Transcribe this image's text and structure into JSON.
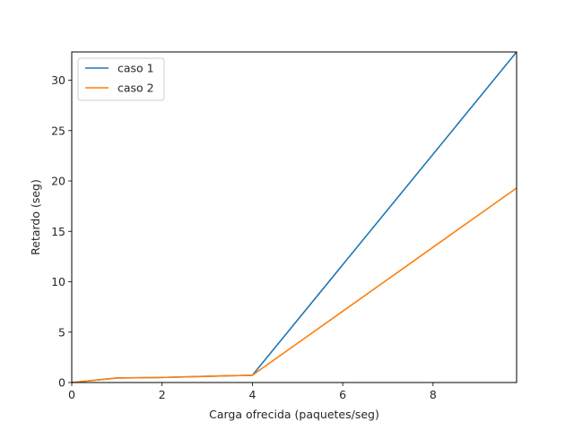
{
  "chart_data": {
    "type": "line",
    "title": "",
    "xlabel": "Carga ofrecida (paquetes/seg)",
    "ylabel": "Retardo (seg)",
    "xlim": [
      0,
      9.85
    ],
    "ylim": [
      0,
      32.8
    ],
    "xticks": [
      0,
      2,
      4,
      6,
      8
    ],
    "yticks": [
      0,
      5,
      10,
      15,
      20,
      25,
      30
    ],
    "grid": false,
    "legend": "top-left",
    "series": [
      {
        "name": "caso 1",
        "color": "#1f77b4",
        "x": [
          0,
          1,
          2,
          3,
          4,
          9.85
        ],
        "y": [
          0,
          0.45,
          0.5,
          0.62,
          0.72,
          32.8
        ]
      },
      {
        "name": "caso 2",
        "color": "#ff7f0e",
        "x": [
          0,
          1,
          2,
          3,
          4,
          9.85
        ],
        "y": [
          0,
          0.45,
          0.5,
          0.62,
          0.72,
          19.3
        ]
      }
    ]
  }
}
